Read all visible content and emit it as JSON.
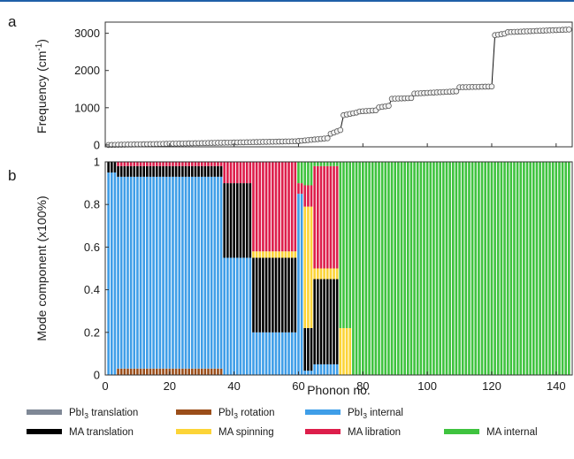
{
  "chart_data": [
    {
      "panel_label": "a",
      "type": "line",
      "ylabel": "Frequency (cm⁻¹)",
      "xlim": [
        0,
        145
      ],
      "ylim": [
        -50,
        3300
      ],
      "xticks": [
        0,
        20,
        40,
        60,
        80,
        100,
        120,
        140
      ],
      "yticks": [
        0,
        1000,
        2000,
        3000
      ],
      "yticklabels": [
        "0",
        "1000",
        "2000",
        "3000"
      ],
      "marker": "open-circle",
      "segments": [
        {
          "x": [
            1,
            60
          ],
          "y": [
            0,
            100
          ]
        },
        {
          "x": [
            60,
            69
          ],
          "y": [
            105,
            180
          ]
        },
        {
          "x": [
            70,
            73
          ],
          "y": [
            300,
            400
          ]
        },
        {
          "x": [
            74,
            78
          ],
          "y": [
            800,
            870
          ]
        },
        {
          "x": [
            79,
            84
          ],
          "y": [
            900,
            930
          ]
        },
        {
          "x": [
            85,
            88
          ],
          "y": [
            1010,
            1050
          ]
        },
        {
          "x": [
            89,
            95
          ],
          "y": [
            1240,
            1260
          ]
        },
        {
          "x": [
            96,
            109
          ],
          "y": [
            1380,
            1440
          ]
        },
        {
          "x": [
            110,
            120
          ],
          "y": [
            1550,
            1570
          ]
        },
        {
          "x": [
            121,
            124
          ],
          "y": [
            2950,
            2990
          ]
        },
        {
          "x": [
            125,
            144
          ],
          "y": [
            3030,
            3100
          ]
        }
      ]
    },
    {
      "panel_label": "b",
      "type": "bar",
      "stacked": true,
      "xlabel": "Phonon no.",
      "ylabel": "Mode component (x100%)",
      "xlim": [
        0,
        145
      ],
      "ylim": [
        0,
        1
      ],
      "xticks": [
        0,
        20,
        40,
        60,
        80,
        100,
        120,
        140
      ],
      "yticks": [
        0,
        0.2,
        0.4,
        0.6,
        0.8,
        1
      ],
      "yticklabels": [
        "0",
        "0.2",
        "0.4",
        "0.6",
        "0.8",
        "1"
      ],
      "n_modes": 144,
      "stack_order": [
        "PbI3 rotation",
        "PbI3 internal",
        "MA translation",
        "MA spinning",
        "MA libration",
        "MA internal"
      ],
      "ranges": [
        {
          "x": [
            1,
            3
          ],
          "pbi3_rotation": 0,
          "pbi3_internal": 0.95,
          "ma_translation": 0.05,
          "ma_spinning": 0,
          "ma_libration": 0,
          "ma_internal": 0
        },
        {
          "x": [
            4,
            36
          ],
          "pbi3_rotation": 0.03,
          "pbi3_internal": 0.9,
          "ma_translation": 0.05,
          "ma_spinning": 0,
          "ma_libration": 0.02,
          "ma_internal": 0
        },
        {
          "x": [
            37,
            45
          ],
          "pbi3_rotation": 0,
          "pbi3_internal": 0.55,
          "ma_translation": 0.35,
          "ma_spinning": 0,
          "ma_libration": 0.1,
          "ma_internal": 0
        },
        {
          "x": [
            46,
            59
          ],
          "pbi3_rotation": 0,
          "pbi3_internal": 0.2,
          "ma_translation": 0.35,
          "ma_spinning": 0.03,
          "ma_libration": 0.42,
          "ma_internal": 0
        },
        {
          "x": [
            60,
            61
          ],
          "pbi3_rotation": 0,
          "pbi3_internal": 0.85,
          "ma_translation": 0,
          "ma_spinning": 0,
          "ma_libration": 0.05,
          "ma_internal": 0.1
        },
        {
          "x": [
            62,
            64
          ],
          "pbi3_rotation": 0,
          "pbi3_internal": 0.02,
          "ma_translation": 0.2,
          "ma_spinning": 0.57,
          "ma_libration": 0.1,
          "ma_internal": 0.11
        },
        {
          "x": [
            65,
            72
          ],
          "pbi3_rotation": 0,
          "pbi3_internal": 0.05,
          "ma_translation": 0.4,
          "ma_spinning": 0.05,
          "ma_libration": 0.48,
          "ma_internal": 0.02
        },
        {
          "x": [
            73,
            76
          ],
          "pbi3_rotation": 0,
          "pbi3_internal": 0,
          "ma_translation": 0,
          "ma_spinning": 0.22,
          "ma_libration": 0,
          "ma_internal": 0.78
        },
        {
          "x": [
            77,
            144
          ],
          "pbi3_rotation": 0,
          "pbi3_internal": 0,
          "ma_translation": 0,
          "ma_spinning": 0,
          "ma_libration": 0,
          "ma_internal": 1
        }
      ]
    }
  ],
  "legend": [
    {
      "key": "pbi3_translation",
      "label_main": "PbI",
      "label_sub": "3",
      "label_rest": " translation",
      "color": "#7f8896"
    },
    {
      "key": "pbi3_rotation",
      "label_main": "PbI",
      "label_sub": "3",
      "label_rest": " rotation",
      "color": "#9b4e1a"
    },
    {
      "key": "pbi3_internal",
      "label_main": "PbI",
      "label_sub": "3",
      "label_rest": " internal",
      "color": "#3f9ee8"
    },
    {
      "key": "ma_translation",
      "label_main": "MA translation",
      "label_sub": "",
      "label_rest": "",
      "color": "#000000"
    },
    {
      "key": "ma_spinning",
      "label_main": "MA spinning",
      "label_sub": "",
      "label_rest": "",
      "color": "#fcd437"
    },
    {
      "key": "ma_libration",
      "label_main": "MA libration",
      "label_sub": "",
      "label_rest": "",
      "color": "#dd1e4b"
    },
    {
      "key": "ma_internal",
      "label_main": "MA internal",
      "label_sub": "",
      "label_rest": "",
      "color": "#3fc33f"
    }
  ]
}
